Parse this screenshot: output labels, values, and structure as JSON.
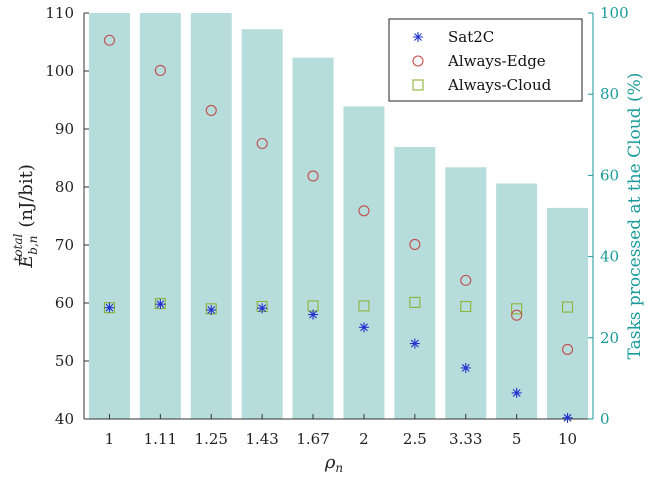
{
  "chart_data": {
    "type": "bar+scatter",
    "categories": [
      "1",
      "1.11",
      "1.25",
      "1.43",
      "1.67",
      "2",
      "2.5",
      "3.33",
      "5",
      "10"
    ],
    "xlabel": "ρ",
    "xlabel_sub": "n",
    "ylabel_left": {
      "symbol": "E",
      "sub": "b,n",
      "sup": "total",
      "unit": "(nJ/bit)"
    },
    "ylabel_right": "Tasks processed at the Cloud (%)",
    "ylim_left": [
      40,
      110
    ],
    "yticks_left": [
      "40",
      "50",
      "60",
      "70",
      "80",
      "90",
      "100",
      "110"
    ],
    "ylim_right": [
      0,
      100
    ],
    "yticks_right": [
      "0",
      "20",
      "40",
      "60",
      "80",
      "100"
    ],
    "bars": {
      "axis": "right",
      "values": [
        100,
        100,
        100,
        96,
        89,
        77,
        67,
        62,
        58,
        52
      ],
      "color": "#b6dcdb"
    },
    "series": [
      {
        "name": "Sat2C",
        "marker": "asterisk",
        "color": "#2233cc",
        "values": [
          59.2,
          59.8,
          58.8,
          59.1,
          58.0,
          55.8,
          53.0,
          48.8,
          44.5,
          40.2
        ]
      },
      {
        "name": "Always-Edge",
        "marker": "circle",
        "color": "#c0504d",
        "values": [
          105.3,
          100.1,
          93.2,
          87.5,
          81.9,
          75.9,
          70.1,
          63.9,
          57.9,
          52.0
        ]
      },
      {
        "name": "Always-Cloud",
        "marker": "square",
        "color": "#8db33a",
        "values": [
          59.2,
          59.9,
          59.0,
          59.4,
          59.5,
          59.5,
          60.1,
          59.4,
          59.0,
          59.3
        ]
      }
    ],
    "legend_position": "top-right"
  }
}
